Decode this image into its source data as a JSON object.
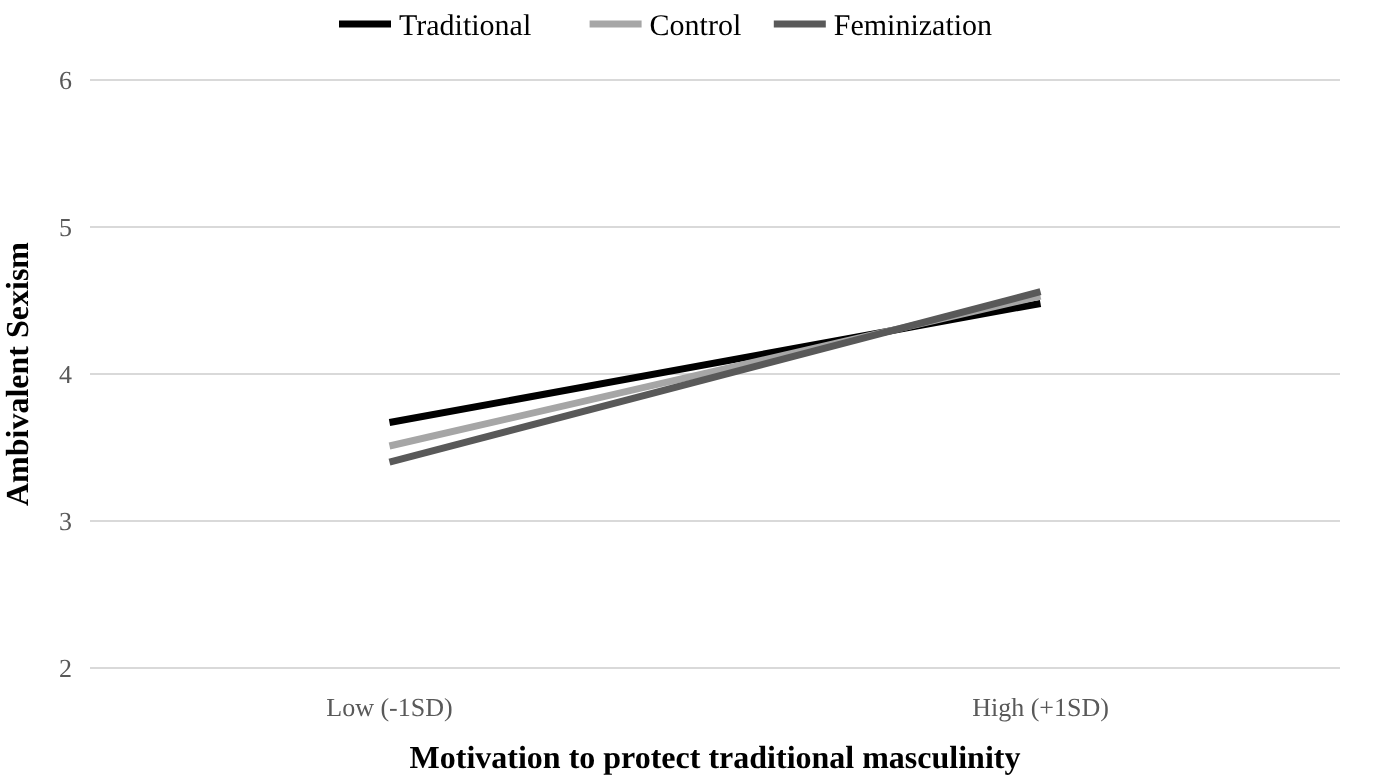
{
  "chart_data": {
    "type": "line",
    "xlabel": "Motivation to protect traditional masculinity",
    "ylabel": "Ambivalent Sexism",
    "categories": [
      "Low (-1SD)",
      "High (+1SD)"
    ],
    "series": [
      {
        "name": "Traditional",
        "color": "#000000",
        "values": [
          3.67,
          4.48
        ]
      },
      {
        "name": "Control",
        "color": "#a6a6a6",
        "values": [
          3.51,
          4.53
        ]
      },
      {
        "name": "Feminization",
        "color": "#595959",
        "values": [
          3.4,
          4.56
        ]
      }
    ],
    "ylim": [
      2,
      6
    ],
    "yticks": [
      2,
      3,
      4,
      5,
      6
    ],
    "grid": "y",
    "legend": "top",
    "marker": "none",
    "line_style": "solid"
  }
}
